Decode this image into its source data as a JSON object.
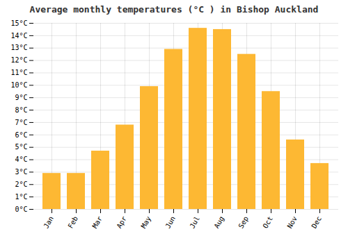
{
  "chart_data": {
    "type": "bar",
    "title": "Average monthly temperatures (°C ) in Bishop Auckland",
    "categories": [
      "Jan",
      "Feb",
      "Mar",
      "Apr",
      "May",
      "Jun",
      "Jul",
      "Aug",
      "Sep",
      "Oct",
      "Nov",
      "Dec"
    ],
    "values": [
      2.9,
      2.9,
      4.7,
      6.8,
      9.9,
      12.9,
      14.6,
      14.5,
      12.5,
      9.5,
      5.6,
      3.7
    ],
    "color": "#FDB833",
    "ylim": [
      0,
      15
    ],
    "yticks": [
      {
        "value": 0,
        "label": "0°C"
      },
      {
        "value": 1,
        "label": "1°C"
      },
      {
        "value": 2,
        "label": "2°C"
      },
      {
        "value": 3,
        "label": "3°C"
      },
      {
        "value": 4,
        "label": "4°C"
      },
      {
        "value": 5,
        "label": "5°C"
      },
      {
        "value": 6,
        "label": "6°C"
      },
      {
        "value": 7,
        "label": "7°C"
      },
      {
        "value": 8,
        "label": "8°C"
      },
      {
        "value": 9,
        "label": "9°C"
      },
      {
        "value": 10,
        "label": "10°C"
      },
      {
        "value": 11,
        "label": "11°C"
      },
      {
        "value": 12,
        "label": "12°C"
      },
      {
        "value": 13,
        "label": "13°C"
      },
      {
        "value": 14,
        "label": "14°C"
      },
      {
        "value": 15,
        "label": "15°C"
      }
    ],
    "grid": true
  }
}
